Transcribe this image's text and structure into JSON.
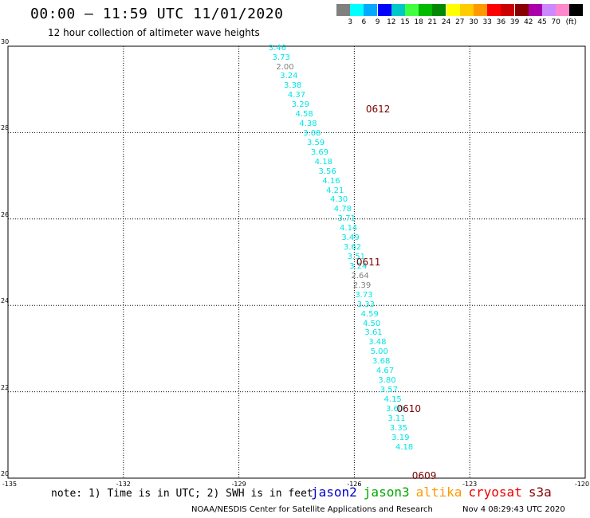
{
  "header": {
    "title": "00:00 – 11:59 UTC 11/01/2020",
    "subtitle": "12 hour collection of altimeter wave heights"
  },
  "colorbar": {
    "colors": [
      "#808080",
      "#00ffff",
      "#00aaff",
      "#0000ff",
      "#00c8c8",
      "#40ff40",
      "#00bb00",
      "#008800",
      "#ffff00",
      "#ffcc00",
      "#ff9900",
      "#ff0000",
      "#cc0000",
      "#880000",
      "#aa00aa",
      "#cc88ff",
      "#ff88cc",
      "#000000"
    ],
    "labels": [
      "3",
      "6",
      "9",
      "12",
      "15",
      "18",
      "21",
      "24",
      "27",
      "30",
      "33",
      "36",
      "39",
      "42",
      "45",
      "70",
      "(ft)"
    ]
  },
  "axes": {
    "lat_ticks": [
      "30",
      "28",
      "26",
      "24",
      "22",
      "20"
    ],
    "lon_ticks": [
      "-135",
      "-132",
      "-129",
      "-126",
      "-123",
      "-120"
    ],
    "lat_range": [
      20,
      30
    ],
    "lon_range": [
      -135,
      -120
    ]
  },
  "tracks": [
    {
      "label": "0612",
      "lat": 28.55,
      "lon": -125.7
    },
    {
      "label": "0611",
      "lat": 25.0,
      "lon": -125.95
    },
    {
      "label": "0610",
      "lat": 21.6,
      "lon": -124.9
    },
    {
      "label": "0609",
      "lat": 20.05,
      "lon": -124.5
    }
  ],
  "waves": [
    {
      "v": "3.46",
      "lat": 29.95,
      "lon": -128.0,
      "c": "#00e5e5"
    },
    {
      "v": "3.73",
      "lat": 29.73,
      "lon": -127.9,
      "c": "#00e5e5"
    },
    {
      "v": "2.00",
      "lat": 29.51,
      "lon": -127.8,
      "c": "#808080"
    },
    {
      "v": "3.24",
      "lat": 29.29,
      "lon": -127.7,
      "c": "#00e5e5"
    },
    {
      "v": "3.38",
      "lat": 29.07,
      "lon": -127.6,
      "c": "#00e5e5"
    },
    {
      "v": "4.37",
      "lat": 28.85,
      "lon": -127.5,
      "c": "#00e5e5"
    },
    {
      "v": "3.29",
      "lat": 28.63,
      "lon": -127.4,
      "c": "#00e5e5"
    },
    {
      "v": "4.58",
      "lat": 28.41,
      "lon": -127.3,
      "c": "#00e5e5"
    },
    {
      "v": "4.38",
      "lat": 28.19,
      "lon": -127.2,
      "c": "#00e5e5"
    },
    {
      "v": "3.08",
      "lat": 27.97,
      "lon": -127.1,
      "c": "#00e5e5"
    },
    {
      "v": "3.59",
      "lat": 27.75,
      "lon": -127.0,
      "c": "#00e5e5"
    },
    {
      "v": "3.69",
      "lat": 27.53,
      "lon": -126.9,
      "c": "#00e5e5"
    },
    {
      "v": "4.18",
      "lat": 27.31,
      "lon": -126.8,
      "c": "#00e5e5"
    },
    {
      "v": "3.56",
      "lat": 27.09,
      "lon": -126.7,
      "c": "#00e5e5"
    },
    {
      "v": "4.16",
      "lat": 26.87,
      "lon": -126.6,
      "c": "#00e5e5"
    },
    {
      "v": "4.21",
      "lat": 26.65,
      "lon": -126.5,
      "c": "#00e5e5"
    },
    {
      "v": "4.30",
      "lat": 26.43,
      "lon": -126.4,
      "c": "#00e5e5"
    },
    {
      "v": "4.78",
      "lat": 26.21,
      "lon": -126.3,
      "c": "#00e5e5"
    },
    {
      "v": "3.71",
      "lat": 25.99,
      "lon": -126.2,
      "c": "#00e5e5"
    },
    {
      "v": "4.14",
      "lat": 25.77,
      "lon": -126.15,
      "c": "#00e5e5"
    },
    {
      "v": "3.49",
      "lat": 25.55,
      "lon": -126.1,
      "c": "#00e5e5"
    },
    {
      "v": "3.62",
      "lat": 25.33,
      "lon": -126.05,
      "c": "#00e5e5"
    },
    {
      "v": "3.51",
      "lat": 25.11,
      "lon": -125.95,
      "c": "#00e5e5"
    },
    {
      "v": "3.24",
      "lat": 24.89,
      "lon": -125.9,
      "c": "#00e5e5"
    },
    {
      "v": "2.64",
      "lat": 24.67,
      "lon": -125.85,
      "c": "#808080"
    },
    {
      "v": "2.39",
      "lat": 24.45,
      "lon": -125.8,
      "c": "#808080"
    },
    {
      "v": "3.73",
      "lat": 24.23,
      "lon": -125.75,
      "c": "#00e5e5"
    },
    {
      "v": "3.33",
      "lat": 24.01,
      "lon": -125.7,
      "c": "#00e5e5"
    },
    {
      "v": "4.59",
      "lat": 23.79,
      "lon": -125.6,
      "c": "#00e5e5"
    },
    {
      "v": "4.50",
      "lat": 23.57,
      "lon": -125.55,
      "c": "#00e5e5"
    },
    {
      "v": "3.61",
      "lat": 23.35,
      "lon": -125.5,
      "c": "#00e5e5"
    },
    {
      "v": "3.48",
      "lat": 23.13,
      "lon": -125.4,
      "c": "#00e5e5"
    },
    {
      "v": "5.00",
      "lat": 22.91,
      "lon": -125.35,
      "c": "#00e5e5"
    },
    {
      "v": "3.68",
      "lat": 22.69,
      "lon": -125.3,
      "c": "#00e5e5"
    },
    {
      "v": "4.67",
      "lat": 22.47,
      "lon": -125.2,
      "c": "#00e5e5"
    },
    {
      "v": "3.80",
      "lat": 22.25,
      "lon": -125.15,
      "c": "#00e5e5"
    },
    {
      "v": "3.57",
      "lat": 22.03,
      "lon": -125.1,
      "c": "#00e5e5"
    },
    {
      "v": "4.15",
      "lat": 21.81,
      "lon": -125.0,
      "c": "#00e5e5"
    },
    {
      "v": "3.60",
      "lat": 21.59,
      "lon": -124.95,
      "c": "#00e5e5"
    },
    {
      "v": "3.11",
      "lat": 21.37,
      "lon": -124.9,
      "c": "#00e5e5"
    },
    {
      "v": "3.35",
      "lat": 21.15,
      "lon": -124.85,
      "c": "#00e5e5"
    },
    {
      "v": "3.19",
      "lat": 20.93,
      "lon": -124.8,
      "c": "#00e5e5"
    },
    {
      "v": "4.18",
      "lat": 20.71,
      "lon": -124.7,
      "c": "#00e5e5"
    }
  ],
  "footer": {
    "note": "note: 1) Time is in UTC; 2) SWH is in feet",
    "legend": [
      {
        "name": "jason2",
        "color": "#0000cc"
      },
      {
        "name": "jason3",
        "color": "#00aa00"
      },
      {
        "name": "altika",
        "color": "#ff9900"
      },
      {
        "name": "cryosat",
        "color": "#ee0000"
      },
      {
        "name": "s3a",
        "color": "#880000"
      }
    ],
    "credit": "NOAA/NESDIS Center for Satellite Applications and Research",
    "timestamp": "Nov  4 08:29:43 UTC 2020"
  }
}
